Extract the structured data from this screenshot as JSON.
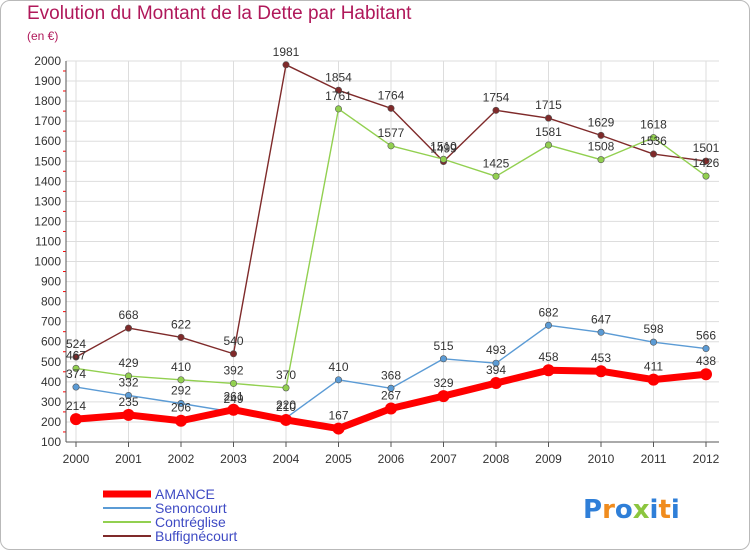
{
  "title": "Evolution du Montant de la Dette par Habitant",
  "subtitle": "(en €)",
  "brand": "Proxiti",
  "chart_data": {
    "type": "line",
    "x": [
      "2000",
      "2001",
      "2002",
      "2003",
      "2004",
      "2005",
      "2006",
      "2007",
      "2008",
      "2009",
      "2010",
      "2011",
      "2012"
    ],
    "ylim": [
      100,
      2000
    ],
    "yticks": [
      100,
      200,
      300,
      400,
      500,
      600,
      700,
      800,
      900,
      1000,
      1100,
      1200,
      1300,
      1400,
      1500,
      1600,
      1700,
      1800,
      1900,
      2000
    ],
    "grid": true,
    "legend_position": "bottom-left",
    "series": [
      {
        "name": "AMANCE",
        "color": "#ff0000",
        "values": [
          214,
          235,
          206,
          261,
          210,
          167,
          267,
          329,
          394,
          458,
          453,
          411,
          438
        ]
      },
      {
        "name": "Senoncourt",
        "color": "#5b9bd5",
        "values": [
          374,
          332,
          292,
          249,
          220,
          410,
          368,
          515,
          493,
          682,
          647,
          598,
          566
        ]
      },
      {
        "name": "Contréglise",
        "color": "#92d050",
        "values": [
          467,
          429,
          410,
          392,
          370,
          1761,
          1577,
          1510,
          1425,
          1581,
          1508,
          1618,
          1426
        ]
      },
      {
        "name": "Buffignécourt",
        "color": "#7f2a2a",
        "values": [
          524,
          668,
          622,
          540,
          1981,
          1854,
          1764,
          1499,
          1754,
          1715,
          1629,
          1536,
          1501
        ]
      }
    ]
  }
}
